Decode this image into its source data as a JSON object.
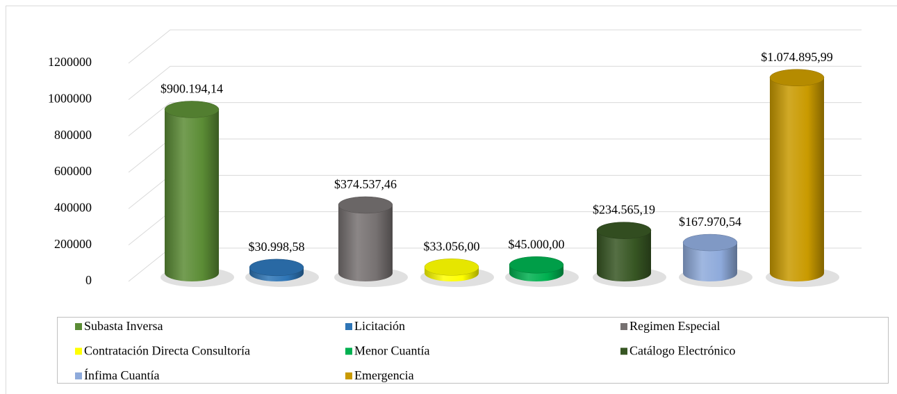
{
  "chart_data": {
    "type": "bar",
    "series": [
      {
        "name": "Subasta Inversa",
        "color": "#5b8c35",
        "values": [
          900194.14
        ],
        "value_labels": [
          "$900.194,14"
        ]
      },
      {
        "name": "Licitación",
        "color": "#2e75b6",
        "values": [
          30998.58
        ],
        "value_labels": [
          "$30.998,58"
        ]
      },
      {
        "name": "Regimen Especial",
        "color": "#767171",
        "values": [
          374537.46
        ],
        "value_labels": [
          "$374.537,46"
        ]
      },
      {
        "name": "Contratación Directa Consultoría",
        "color": "#ffff00",
        "values": [
          33056.0
        ],
        "value_labels": [
          "$33.056,00"
        ]
      },
      {
        "name": "Menor Cuantía",
        "color": "#00b050",
        "values": [
          45000.0
        ],
        "value_labels": [
          "$45.000,00"
        ]
      },
      {
        "name": "Catálogo Electrónico",
        "color": "#375623",
        "values": [
          234565.19
        ],
        "value_labels": [
          "$234.565,19"
        ]
      },
      {
        "name": "Ínfima Cuantía",
        "color": "#8eaadb",
        "values": [
          167970.54
        ],
        "value_labels": [
          "$167.970,54"
        ]
      },
      {
        "name": "Emergencia",
        "color": "#c99a00",
        "values": [
          1074895.99
        ],
        "value_labels": [
          "$1.074.895,99"
        ]
      }
    ],
    "ylim": [
      0,
      1200000
    ],
    "yticks": [
      0,
      200000,
      400000,
      600000,
      800000,
      1000000,
      1200000
    ],
    "grid": true
  }
}
